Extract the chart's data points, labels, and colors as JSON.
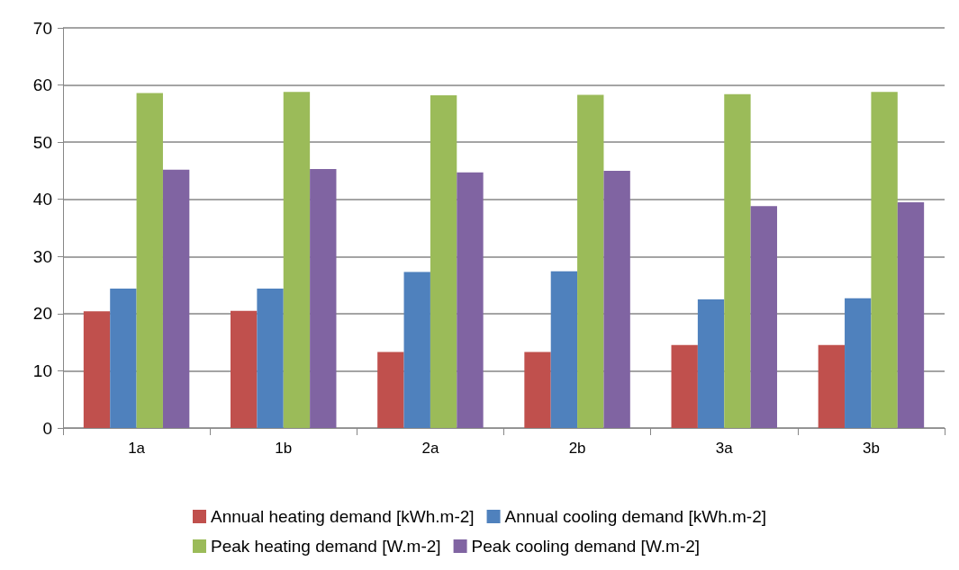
{
  "chart_data": {
    "type": "bar",
    "categories": [
      "1a",
      "1b",
      "2a",
      "2b",
      "3a",
      "3b"
    ],
    "series": [
      {
        "name": "Annual heating demand [kWh.m-2]",
        "color": "#c0504d",
        "values": [
          20.4,
          20.5,
          13.3,
          13.3,
          14.5,
          14.5
        ]
      },
      {
        "name": "Annual cooling demand [kWh.m-2]",
        "color": "#4f81bd",
        "values": [
          24.4,
          24.4,
          27.3,
          27.4,
          22.5,
          22.7
        ]
      },
      {
        "name": "Peak heating demand [W.m-2]",
        "color": "#9bbb59",
        "values": [
          58.6,
          58.8,
          58.2,
          58.3,
          58.4,
          58.8
        ]
      },
      {
        "name": "Peak cooling demand [W.m-2]",
        "color": "#8064a2",
        "values": [
          45.2,
          45.3,
          44.7,
          45.0,
          38.8,
          39.5
        ]
      }
    ],
    "ylim": [
      0,
      70
    ],
    "yticks": [
      0,
      10,
      20,
      30,
      40,
      50,
      60,
      70
    ],
    "grid": "y",
    "legend": "bottom"
  }
}
